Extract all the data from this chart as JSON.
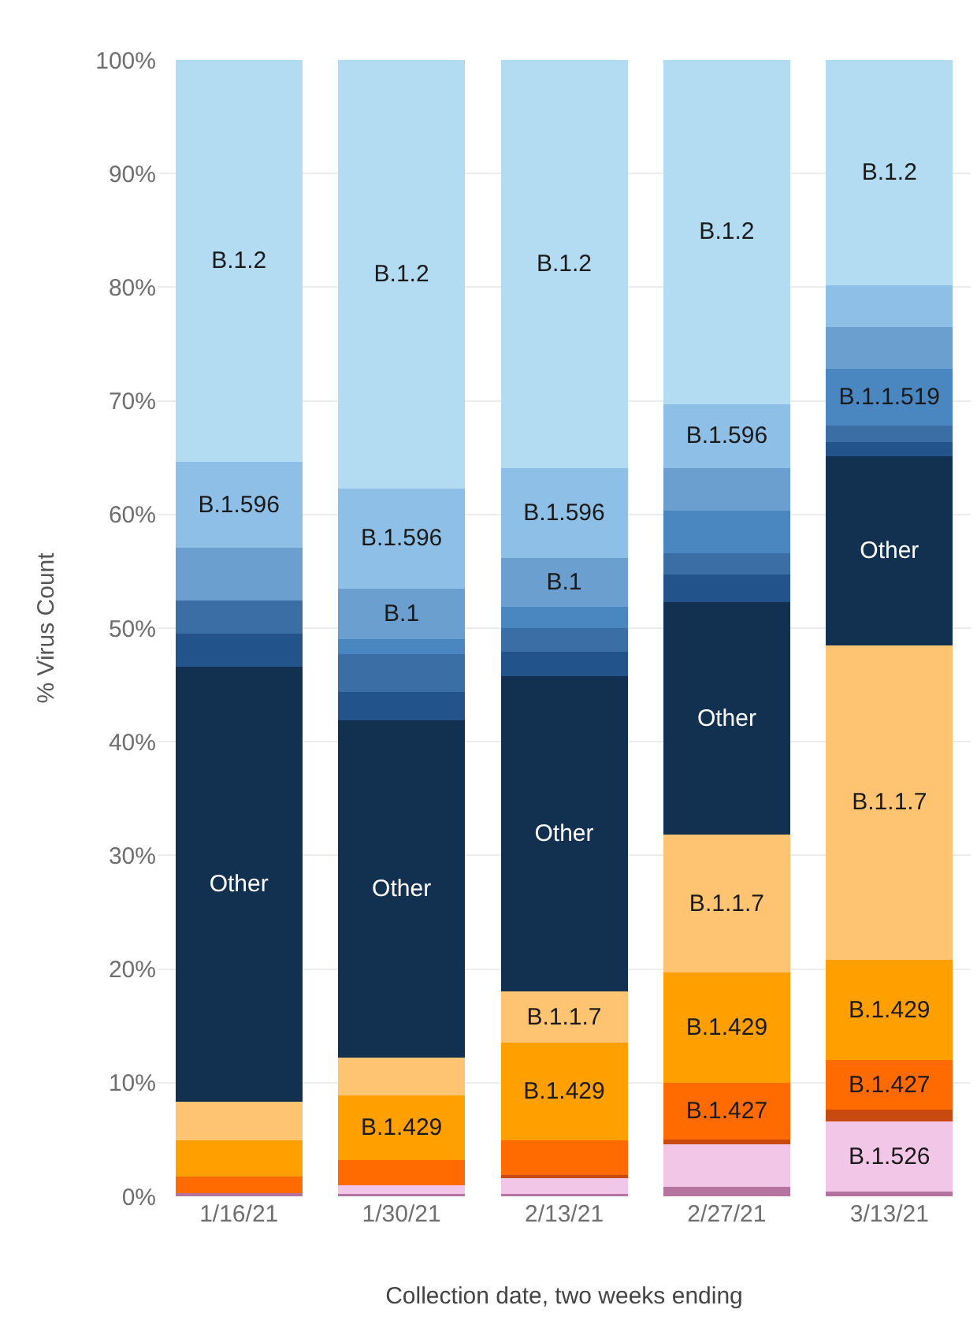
{
  "chart_data": {
    "type": "bar",
    "stacked": true,
    "xlabel": "Collection date, two weeks ending",
    "ylabel": "% Virus Count",
    "categories": [
      "1/16/21",
      "1/30/21",
      "2/13/21",
      "2/27/21",
      "3/13/21"
    ],
    "ylim": [
      0,
      100
    ],
    "yticks": [
      {
        "value": 0,
        "label": "0%"
      },
      {
        "value": 10,
        "label": "10%"
      },
      {
        "value": 20,
        "label": "20%"
      },
      {
        "value": 30,
        "label": "30%"
      },
      {
        "value": 40,
        "label": "40%"
      },
      {
        "value": 50,
        "label": "50%"
      },
      {
        "value": 60,
        "label": "60%"
      },
      {
        "value": 70,
        "label": "70%"
      },
      {
        "value": 80,
        "label": "80%"
      },
      {
        "value": 90,
        "label": "90%"
      },
      {
        "value": 100,
        "label": "100%"
      }
    ],
    "grid": "y",
    "legend": false,
    "series": [
      {
        "color": "#b5739f",
        "values": [
          0.3,
          0.2,
          0.2,
          0.8,
          0.4
        ],
        "value_labels": [
          null,
          null,
          null,
          null,
          null
        ]
      },
      {
        "color": "#f2c6e6",
        "values": [
          0,
          0.8,
          1.4,
          3.8,
          6.2
        ],
        "value_labels": [
          null,
          null,
          null,
          null,
          "B.1.526"
        ]
      },
      {
        "color": "#c84a10",
        "values": [
          0,
          0,
          0.3,
          0.4,
          1.0
        ],
        "value_labels": [
          null,
          null,
          null,
          null,
          null
        ]
      },
      {
        "color": "#ff6b00",
        "values": [
          1.4,
          2.2,
          3.0,
          5.0,
          4.4
        ],
        "value_labels": [
          null,
          null,
          null,
          "B.1.427",
          "B.1.427"
        ]
      },
      {
        "color": "#ff9f00",
        "values": [
          3.2,
          5.7,
          8.6,
          9.7,
          8.8
        ],
        "value_labels": [
          null,
          "B.1.429",
          "B.1.429",
          "B.1.429",
          "B.1.429"
        ]
      },
      {
        "color": "#ffc472",
        "values": [
          3.4,
          3.3,
          4.5,
          12.1,
          27.7
        ],
        "value_labels": [
          null,
          null,
          "B.1.1.7",
          "B.1.1.7",
          "B.1.1.7"
        ]
      },
      {
        "color": "#12304f",
        "values": [
          38.3,
          29.7,
          27.8,
          20.5,
          16.6
        ],
        "value_labels": [
          "Other",
          "Other",
          "Other",
          "Other",
          "Other"
        ]
      },
      {
        "color": "#22538a",
        "values": [
          2.9,
          2.5,
          2.1,
          2.4,
          1.3
        ],
        "value_labels": [
          null,
          null,
          null,
          null,
          null
        ]
      },
      {
        "color": "#3a6ea5",
        "values": [
          2.9,
          3.3,
          2.1,
          1.9,
          1.4
        ],
        "value_labels": [
          null,
          null,
          null,
          null,
          null
        ]
      },
      {
        "color": "#4a86c0",
        "values": [
          0,
          1.3,
          1.9,
          3.7,
          5.0
        ],
        "value_labels": [
          null,
          null,
          null,
          null,
          "B.1.1.519"
        ]
      },
      {
        "color": "#6a9fcf",
        "values": [
          4.7,
          4.5,
          4.3,
          3.8,
          3.7
        ],
        "value_labels": [
          null,
          "B.1",
          "B.1",
          null,
          null
        ]
      },
      {
        "color": "#8ebfe6",
        "values": [
          7.5,
          8.8,
          7.9,
          5.6,
          3.7
        ],
        "value_labels": [
          "B.1.596",
          "B.1.596",
          "B.1.596",
          "B.1.596",
          null
        ]
      },
      {
        "color": "#b3dbf2",
        "values": [
          35.4,
          37.7,
          35.9,
          30.3,
          19.8
        ],
        "value_labels": [
          "B.1.2",
          "B.1.2",
          "B.1.2",
          "B.1.2",
          "B.1.2"
        ]
      }
    ]
  }
}
